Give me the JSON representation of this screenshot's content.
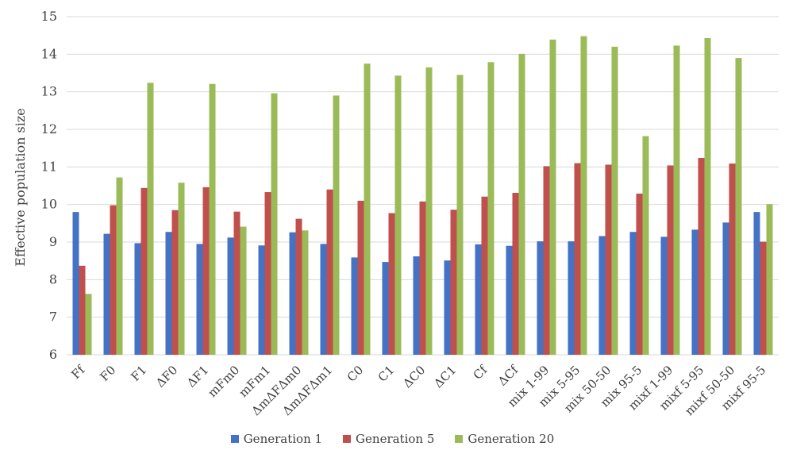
{
  "colors": {
    "gen1": "#4472C4",
    "gen5": "#C0504D",
    "gen20": "#9BBB59",
    "grid": "#D9D9D9",
    "text": "#404040"
  },
  "chart_data": {
    "type": "bar",
    "ylabel": "Effective population size",
    "xlabel": "",
    "ylim": [
      6,
      15
    ],
    "yticks": [
      "6",
      "7",
      "8",
      "9",
      "10",
      "11",
      "12",
      "13",
      "14",
      "15"
    ],
    "grid": true,
    "legend_position": "bottom",
    "categories": [
      "Ff",
      "F0",
      "F1",
      "ΔF0",
      "ΔF1",
      "mFm0",
      "mFm1",
      "ΔmΔFΔm0",
      "ΔmΔFΔm1",
      "C0",
      "C1",
      "ΔC0",
      "ΔC1",
      "Cf",
      "ΔCf",
      "mix 1-99",
      "mix 5-95",
      "mix 50-50",
      "mix 95-5",
      "mixf 1-99",
      "mixf 5-95",
      "mixf 50-50",
      "mixf 95-5"
    ],
    "series": [
      {
        "name": "Generation 1",
        "color": "#4472C4",
        "values": [
          9.8,
          9.22,
          8.97,
          9.27,
          8.95,
          9.12,
          8.91,
          9.26,
          8.95,
          8.59,
          8.47,
          8.62,
          8.51,
          8.94,
          8.9,
          9.02,
          9.02,
          9.16,
          9.27,
          9.14,
          9.33,
          9.52,
          9.8
        ]
      },
      {
        "name": "Generation 5",
        "color": "#C0504D",
        "values": [
          8.37,
          9.98,
          10.44,
          9.85,
          10.46,
          9.81,
          10.33,
          9.62,
          10.4,
          10.1,
          9.77,
          10.08,
          9.86,
          10.21,
          10.31,
          11.02,
          11.1,
          11.06,
          10.29,
          11.04,
          11.24,
          11.09,
          9.01
        ]
      },
      {
        "name": "Generation 20",
        "color": "#9BBB59",
        "values": [
          7.62,
          10.72,
          13.24,
          10.58,
          13.21,
          9.41,
          12.96,
          9.31,
          12.9,
          13.75,
          13.43,
          13.65,
          13.45,
          13.79,
          14.01,
          14.39,
          14.48,
          14.2,
          11.82,
          14.23,
          14.43,
          13.9,
          10.01
        ]
      }
    ]
  }
}
